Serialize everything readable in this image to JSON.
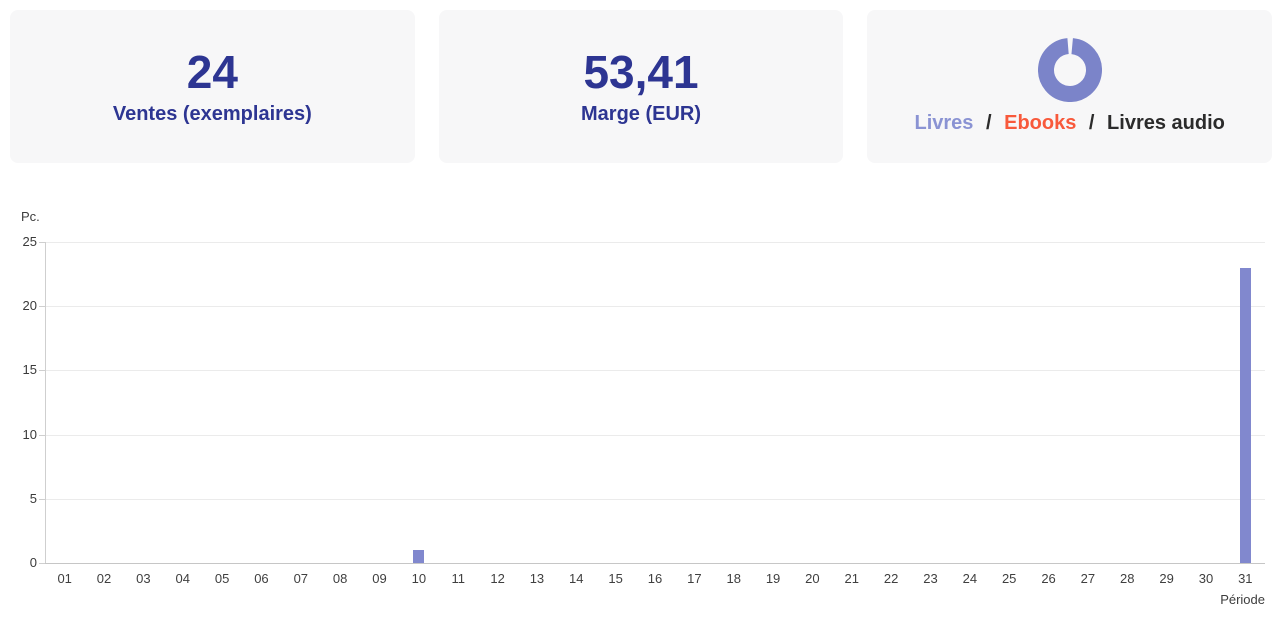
{
  "cards": {
    "sales": {
      "value": "24",
      "label": "Ventes (exemplaires)"
    },
    "margin": {
      "value": "53,41",
      "label": "Marge (EUR)"
    },
    "formats": {
      "separator": "/",
      "items": [
        {
          "label": "Livres",
          "color": "#8a93d3"
        },
        {
          "label": "Ebooks",
          "color": "#f8593b"
        },
        {
          "label": "Livres audio",
          "color": "#2b2b2b"
        }
      ],
      "donut": {
        "color": "#7b84c9",
        "gap_position": "top"
      }
    }
  },
  "chart_data": {
    "type": "bar",
    "title": "",
    "ylabel": "Pc.",
    "xlabel": "Période",
    "categories": [
      "01",
      "02",
      "03",
      "04",
      "05",
      "06",
      "07",
      "08",
      "09",
      "10",
      "11",
      "12",
      "13",
      "14",
      "15",
      "16",
      "17",
      "18",
      "19",
      "20",
      "21",
      "22",
      "23",
      "24",
      "25",
      "26",
      "27",
      "28",
      "29",
      "30",
      "31"
    ],
    "values": [
      0,
      0,
      0,
      0,
      0,
      0,
      0,
      0,
      0,
      1,
      0,
      0,
      0,
      0,
      0,
      0,
      0,
      0,
      0,
      0,
      0,
      0,
      0,
      0,
      0,
      0,
      0,
      0,
      0,
      0,
      23
    ],
    "ylim": [
      0,
      25
    ],
    "yticks": [
      0,
      5,
      10,
      15,
      20,
      25
    ],
    "bar_color": "#8188ce",
    "grid": true,
    "legend": "none"
  }
}
